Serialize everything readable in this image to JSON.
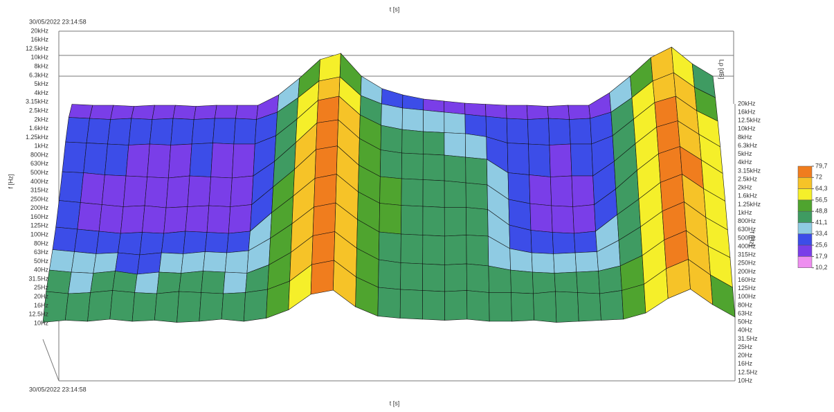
{
  "chart_data": {
    "type": "surface",
    "top_axis_label": "t [s]",
    "x_label": "t [s]",
    "timestamp_top": "30/05/2022 23:14:58",
    "timestamp_bottom": "30/05/2022 23:14:58",
    "y_label": "f [Hz]",
    "y_label_right": "f [Hz]",
    "z_label": "Lp [dB]",
    "f_ticks": [
      "10Hz",
      "12.5Hz",
      "16Hz",
      "20Hz",
      "25Hz",
      "31.5Hz",
      "40Hz",
      "50Hz",
      "63Hz",
      "80Hz",
      "100Hz",
      "125Hz",
      "160Hz",
      "200Hz",
      "250Hz",
      "315Hz",
      "400Hz",
      "500Hz",
      "630Hz",
      "800Hz",
      "1kHz",
      "1.25kHz",
      "1.6kHz",
      "2kHz",
      "2.5kHz",
      "3.15kHz",
      "4kHz",
      "5kHz",
      "6.3kHz",
      "8kHz",
      "10kHz",
      "12.5kHz",
      "16kHz",
      "20kHz"
    ],
    "levels": [
      [
        43,
        45,
        44,
        46,
        44,
        45,
        43,
        44,
        46,
        44,
        47,
        55,
        70,
        74,
        58,
        49,
        47,
        46,
        45,
        46,
        44,
        44,
        45,
        43,
        44,
        45,
        46,
        52,
        66,
        75,
        60,
        48
      ],
      [
        46,
        44,
        45,
        47,
        45,
        44,
        46,
        45,
        44,
        45,
        48,
        56,
        72,
        76,
        60,
        50,
        48,
        47,
        46,
        47,
        45,
        45,
        44,
        46,
        45,
        44,
        47,
        53,
        68,
        77,
        62,
        50
      ],
      [
        40,
        38,
        37,
        39,
        36,
        38,
        37,
        39,
        38,
        37,
        45,
        57,
        73,
        77,
        61,
        50,
        47,
        46,
        45,
        46,
        44,
        40,
        38,
        37,
        38,
        39,
        44,
        54,
        69,
        78,
        63,
        52
      ],
      [
        33,
        31,
        29,
        30,
        28,
        30,
        29,
        31,
        30,
        32,
        44,
        58,
        74,
        78,
        62,
        50,
        48,
        47,
        46,
        47,
        46,
        34,
        30,
        29,
        30,
        31,
        42,
        55,
        70,
        79,
        64,
        52
      ],
      [
        28,
        26,
        24,
        22,
        23,
        22,
        24,
        23,
        22,
        24,
        42,
        58,
        75,
        79,
        62,
        51,
        49,
        48,
        47,
        47,
        45,
        30,
        25,
        23,
        22,
        24,
        40,
        55,
        71,
        79,
        65,
        53
      ],
      [
        27,
        25,
        23,
        21,
        22,
        20,
        21,
        22,
        21,
        23,
        40,
        57,
        76,
        79.5,
        61,
        50,
        48,
        47,
        46,
        44,
        42,
        28,
        24,
        22,
        21,
        23,
        38,
        56,
        72,
        79,
        66,
        53
      ],
      [
        28,
        27,
        25,
        24,
        23,
        22,
        24,
        23,
        22,
        24,
        38,
        56,
        75,
        78,
        60,
        49,
        46,
        45,
        44,
        42,
        40,
        27,
        25,
        23,
        24,
        24,
        38,
        55,
        71,
        77,
        64,
        52
      ],
      [
        30,
        29,
        28,
        27,
        28,
        27,
        28,
        29,
        28,
        28,
        36,
        52,
        70,
        74,
        56,
        46,
        42,
        40,
        39,
        38,
        35,
        29,
        28,
        27,
        28,
        28,
        36,
        52,
        68,
        74,
        60,
        50
      ],
      [
        27,
        26,
        25,
        26,
        25,
        26,
        25,
        26,
        26,
        25,
        32,
        46,
        62,
        66,
        48,
        40,
        36,
        34,
        32,
        30,
        28,
        26,
        25,
        26,
        25,
        26,
        32,
        46,
        62,
        70,
        56,
        46
      ],
      [
        13,
        12,
        12,
        11,
        12,
        12,
        11,
        12,
        12,
        12,
        22,
        38,
        56,
        62,
        40,
        28,
        22,
        18,
        16,
        14,
        13,
        12,
        12,
        11,
        12,
        12,
        24,
        40,
        58,
        68,
        52,
        40
      ]
    ],
    "legend": {
      "ticks": [
        {
          "value": 79.7,
          "label": "79,7"
        },
        72,
        {
          "value": 64.3,
          "label": "64,3"
        },
        {
          "value": 56.5,
          "label": "56,5"
        },
        {
          "value": 48.8,
          "label": "48,8"
        },
        {
          "value": 41.1,
          "label": "41,1"
        },
        {
          "value": 33.4,
          "label": "33,4"
        },
        {
          "value": 25.6,
          "label": "25,6"
        },
        {
          "value": 17.9,
          "label": "17,9"
        },
        {
          "value": 10.2,
          "label": "10,2"
        }
      ],
      "colors": [
        "#f07d1e",
        "#f6c328",
        "#f5ef2a",
        "#4fa42f",
        "#3f9b62",
        "#8fcbe3",
        "#3c4de8",
        "#7a3ee8",
        "#ee8ef0"
      ]
    }
  }
}
